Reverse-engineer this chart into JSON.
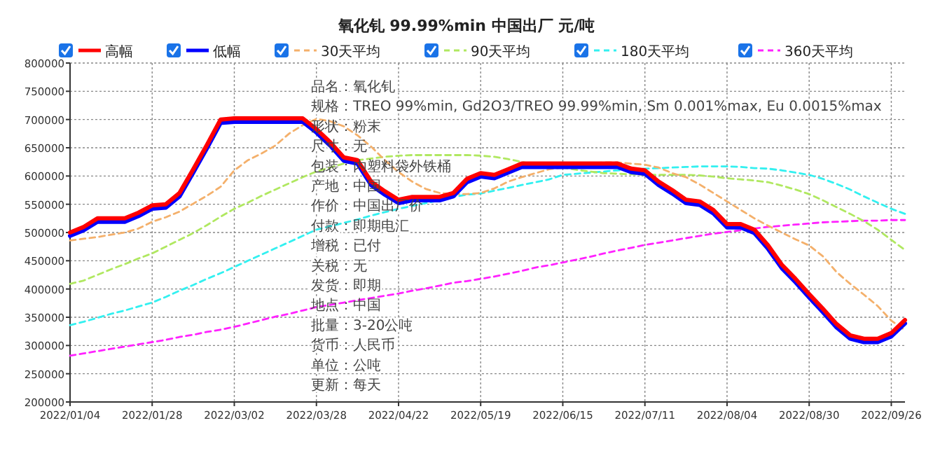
{
  "chart_data": {
    "type": "line",
    "title": "氧化钆 99.99%min 中国出厂 元/吨",
    "categories": [
      "2022/01/04",
      null,
      null,
      null,
      null,
      null,
      "2022/01/28",
      null,
      null,
      null,
      null,
      null,
      "2022/03/02",
      null,
      null,
      null,
      null,
      null,
      "2022/03/28",
      null,
      null,
      null,
      null,
      null,
      "2022/04/22",
      null,
      null,
      null,
      null,
      null,
      "2022/05/19",
      null,
      null,
      null,
      null,
      null,
      "2022/06/15",
      null,
      null,
      null,
      null,
      null,
      "2022/07/11",
      null,
      null,
      null,
      null,
      null,
      "2022/08/04",
      null,
      null,
      null,
      null,
      null,
      "2022/08/30",
      null,
      null,
      null,
      null,
      null,
      "2022/09/26",
      null
    ],
    "series": [
      {
        "name": "高幅",
        "color": "#ff0000",
        "line_style": "solid",
        "values": [
          500000,
          510000,
          525000,
          525000,
          525000,
          535000,
          548000,
          550000,
          570000,
          612000,
          655000,
          700000,
          702000,
          702000,
          702000,
          702000,
          702000,
          702000,
          683000,
          660000,
          633000,
          628000,
          590000,
          573000,
          558000,
          563000,
          563000,
          563000,
          570000,
          595000,
          605000,
          602000,
          612000,
          622000,
          622000,
          622000,
          622000,
          622000,
          622000,
          622000,
          622000,
          613000,
          610000,
          590000,
          575000,
          558000,
          555000,
          540000,
          515000,
          515000,
          505000,
          477000,
          443000,
          418000,
          391000,
          365000,
          338000,
          318000,
          312000,
          312000,
          322000,
          345000
        ]
      },
      {
        "name": "低幅",
        "color": "#0000ff",
        "line_style": "solid",
        "values": [
          494000,
          504000,
          519000,
          519000,
          519000,
          529000,
          542000,
          544000,
          564000,
          606000,
          649000,
          694000,
          696000,
          696000,
          696000,
          696000,
          696000,
          696000,
          677000,
          654000,
          627000,
          622000,
          584000,
          567000,
          552000,
          557000,
          557000,
          557000,
          564000,
          589000,
          599000,
          596000,
          606000,
          616000,
          616000,
          616000,
          616000,
          616000,
          616000,
          616000,
          616000,
          607000,
          604000,
          584000,
          569000,
          552000,
          549000,
          534000,
          509000,
          509000,
          499000,
          471000,
          437000,
          412000,
          385000,
          359000,
          332000,
          312000,
          306000,
          306000,
          316000,
          339000
        ]
      },
      {
        "name": "30天平均",
        "color": "#f4b06b",
        "line_style": "dashed",
        "values": [
          486000,
          489000,
          492000,
          496000,
          500000,
          507000,
          519000,
          527000,
          537000,
          551000,
          565000,
          581000,
          610000,
          628000,
          640000,
          654000,
          675000,
          690000,
          701000,
          697000,
          688000,
          672000,
          652000,
          628000,
          607000,
          590000,
          577000,
          570000,
          568000,
          568000,
          570000,
          578000,
          590000,
          598000,
          605000,
          612000,
          615000,
          620000,
          622000,
          624000,
          624000,
          622000,
          620000,
          615000,
          605000,
          598000,
          585000,
          570000,
          555000,
          540000,
          525000,
          512000,
          500000,
          488000,
          477000,
          458000,
          430000,
          409000,
          390000,
          370000,
          344000,
          327000
        ]
      },
      {
        "name": "90天平均",
        "color": "#b0e860",
        "line_style": "dashed",
        "values": [
          409000,
          415000,
          425000,
          435000,
          444000,
          454000,
          463000,
          475000,
          487000,
          499000,
          513000,
          528000,
          542000,
          553000,
          565000,
          576000,
          587000,
          598000,
          608000,
          615000,
          622000,
          628000,
          631000,
          634000,
          636000,
          637000,
          637000,
          637000,
          637000,
          637000,
          636000,
          634000,
          630000,
          625000,
          620000,
          617000,
          615000,
          611000,
          608000,
          605000,
          604000,
          603000,
          602000,
          602000,
          602000,
          602000,
          601000,
          599000,
          596000,
          594000,
          592000,
          589000,
          583000,
          576000,
          568000,
          557000,
          545000,
          533000,
          520000,
          505000,
          487000,
          469000
        ]
      },
      {
        "name": "180天平均",
        "color": "#33f0f0",
        "line_style": "dashed",
        "values": [
          336000,
          342000,
          349000,
          356000,
          362000,
          369000,
          376000,
          386000,
          397000,
          407000,
          418000,
          428000,
          439000,
          450000,
          461000,
          472000,
          483000,
          494000,
          505000,
          511000,
          517000,
          523000,
          530000,
          536000,
          542000,
          547000,
          552000,
          557000,
          563000,
          567000,
          569000,
          574000,
          579000,
          584000,
          589000,
          594000,
          602000,
          604000,
          606000,
          608000,
          610000,
          612000,
          613000,
          614000,
          615000,
          616000,
          617000,
          617000,
          617000,
          616000,
          614000,
          613000,
          610000,
          606000,
          602000,
          595000,
          586000,
          576000,
          564000,
          553000,
          542000,
          533000
        ]
      },
      {
        "name": "360天平均",
        "color": "#ff22ff",
        "line_style": "dashed",
        "values": [
          282000,
          286000,
          290000,
          294000,
          298000,
          302000,
          306000,
          310000,
          315000,
          319000,
          324000,
          328000,
          333000,
          339000,
          345000,
          351000,
          356000,
          362000,
          368000,
          372000,
          376000,
          380000,
          384000,
          388000,
          392000,
          397000,
          401000,
          406000,
          411000,
          414000,
          418000,
          422000,
          427000,
          432000,
          438000,
          442000,
          447000,
          452000,
          457000,
          463000,
          468000,
          473000,
          478000,
          482000,
          486000,
          490000,
          494000,
          498000,
          501000,
          504000,
          507000,
          510000,
          512000,
          514000,
          516000,
          518000,
          519000,
          520000,
          521000,
          521000,
          522000,
          522000
        ]
      }
    ],
    "ylim": [
      200000,
      800000
    ],
    "yticks": [
      200000,
      250000,
      300000,
      350000,
      400000,
      450000,
      500000,
      550000,
      600000,
      650000,
      700000,
      750000,
      800000
    ],
    "grid": true,
    "legend": "top",
    "marker": "none",
    "annotations": [
      "品名：氧化钆",
      "规格：TREO 99%min, Gd2O3/TREO 99.99%min, Sm 0.001%max, Eu 0.0015%max",
      "形状：粉末",
      "尺寸：无",
      "包装：内塑料袋外铁桶",
      "产地：中国",
      "作价：中国出厂价",
      "付款：即期电汇",
      "增税：已付",
      "关税：无",
      "发货：即期",
      "地点：中国",
      "批量：3-20公吨",
      "货币：人民币",
      "单位：公吨",
      "更新：每天"
    ]
  }
}
